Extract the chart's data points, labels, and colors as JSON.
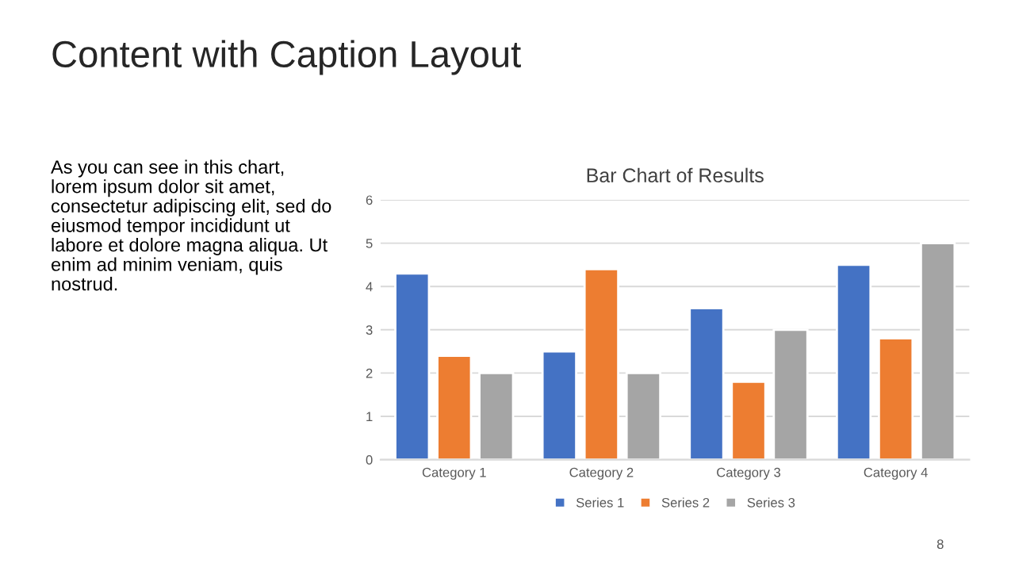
{
  "chart_data": {
    "type": "bar",
    "title": "Bar Chart of Results",
    "categories": [
      "Category 1",
      "Category 2",
      "Category 3",
      "Category 4"
    ],
    "series": [
      {
        "name": "Series 1",
        "color": "#4472c4",
        "values": [
          4.3,
          2.5,
          3.5,
          4.5
        ]
      },
      {
        "name": "Series 2",
        "color": "#ed7d31",
        "values": [
          2.4,
          4.4,
          1.8,
          2.8
        ]
      },
      {
        "name": "Series 3",
        "color": "#a5a5a5",
        "values": [
          2,
          2,
          3,
          5
        ]
      }
    ],
    "ylim": [
      0,
      6
    ],
    "yticks": [
      0,
      1,
      2,
      3,
      4,
      5,
      6
    ],
    "grid": "y",
    "legend": "bottom",
    "annotations": [
      "Content with Caption Layout",
      "As you can see in this chart,\nlorem ipsum dolor sit amet,\nconsectetur adipiscing elit, sed do\neiusmod tempor incididunt ut\nlabore et dolore magna aliqua. Ut\nenim ad minim veniam, quis\nnostrud.",
      "8"
    ]
  }
}
